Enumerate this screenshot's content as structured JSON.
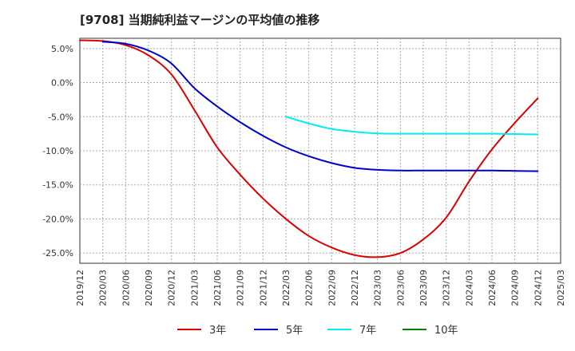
{
  "chart_data": {
    "type": "line",
    "title": "[9708]  当期純利益マージンの平均値の推移",
    "xlabel": "",
    "ylabel": "",
    "x_ticks": [
      "2019/12",
      "2020/03",
      "2020/06",
      "2020/09",
      "2020/12",
      "2021/03",
      "2021/06",
      "2021/09",
      "2021/12",
      "2022/03",
      "2022/06",
      "2022/09",
      "2022/12",
      "2023/03",
      "2023/06",
      "2023/09",
      "2023/12",
      "2024/03",
      "2024/06",
      "2024/09",
      "2024/12",
      "2025/03"
    ],
    "y_ticks": [
      "5.0%",
      "0.0%",
      "-5.0%",
      "-10.0%",
      "-15.0%",
      "-20.0%",
      "-25.0%"
    ],
    "y_tick_values": [
      5,
      0,
      -5,
      -10,
      -15,
      -20,
      -25
    ],
    "ylim": [
      -26.5,
      6.5
    ],
    "grid": true,
    "legend_position": "bottom",
    "series": [
      {
        "name": "3年",
        "color": "#dd0000",
        "x": [
          "2019/12",
          "2020/03",
          "2020/06",
          "2020/09",
          "2020/12",
          "2021/03",
          "2021/06",
          "2021/09",
          "2021/12",
          "2022/03",
          "2022/06",
          "2022/09",
          "2022/12",
          "2023/03",
          "2023/06",
          "2023/09",
          "2023/12",
          "2024/03",
          "2024/06",
          "2024/09",
          "2024/12"
        ],
        "values": [
          6.2,
          6.1,
          5.5,
          4.0,
          1.2,
          -4.0,
          -9.5,
          -13.5,
          -17.0,
          -20.0,
          -22.5,
          -24.2,
          -25.3,
          -25.6,
          -25.0,
          -23.0,
          -19.8,
          -14.5,
          -9.8,
          -5.9,
          -2.3
        ]
      },
      {
        "name": "5年",
        "color": "#0000cc",
        "x": [
          "2020/03",
          "2020/06",
          "2020/09",
          "2020/12",
          "2021/03",
          "2021/06",
          "2021/09",
          "2021/12",
          "2022/03",
          "2022/06",
          "2022/09",
          "2022/12",
          "2023/03",
          "2023/06",
          "2023/09",
          "2023/12",
          "2024/03",
          "2024/06",
          "2024/09",
          "2024/12"
        ],
        "values": [
          6.0,
          5.7,
          4.7,
          2.8,
          -0.8,
          -3.5,
          -5.8,
          -7.8,
          -9.5,
          -10.8,
          -11.8,
          -12.5,
          -12.8,
          -12.9,
          -12.9,
          -12.9,
          -12.9,
          -12.9,
          -12.95,
          -13.0
        ]
      },
      {
        "name": "7年",
        "color": "#00eeee",
        "x": [
          "2022/03",
          "2022/06",
          "2022/09",
          "2022/12",
          "2023/03",
          "2023/06",
          "2023/09",
          "2023/12",
          "2024/03",
          "2024/06",
          "2024/09",
          "2024/12"
        ],
        "values": [
          -5.0,
          -6.0,
          -6.8,
          -7.2,
          -7.45,
          -7.5,
          -7.5,
          -7.5,
          -7.5,
          -7.5,
          -7.55,
          -7.6
        ]
      },
      {
        "name": "10年",
        "color": "#008000",
        "x": [],
        "values": []
      }
    ]
  }
}
